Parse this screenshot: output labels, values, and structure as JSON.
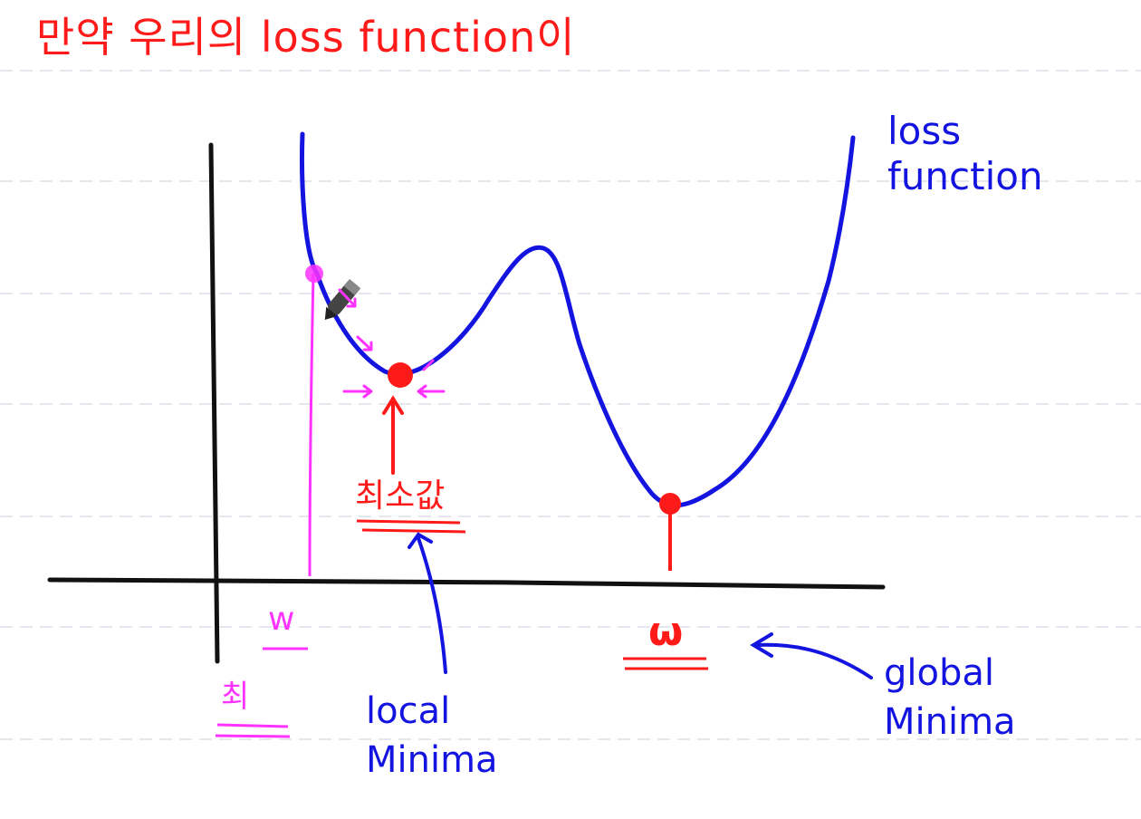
{
  "title": "만약 우리의 loss function이",
  "curve_label": {
    "line1": "loss",
    "line2": "function"
  },
  "w_left": {
    "symbol": "w",
    "sub": "최"
  },
  "w_right": {
    "symbol": "ω"
  },
  "min_value_label": "최소값",
  "local_minima": {
    "line1": "local",
    "line2": "Minima"
  },
  "global_minima": {
    "line1": "global",
    "line2": "Minima"
  },
  "colors": {
    "ink_red": "#ff1a1a",
    "ink_blue": "#1414e0",
    "ink_magenta": "#ff33ff",
    "ink_black": "#111111",
    "ruled_line": "#e6e6ee"
  }
}
